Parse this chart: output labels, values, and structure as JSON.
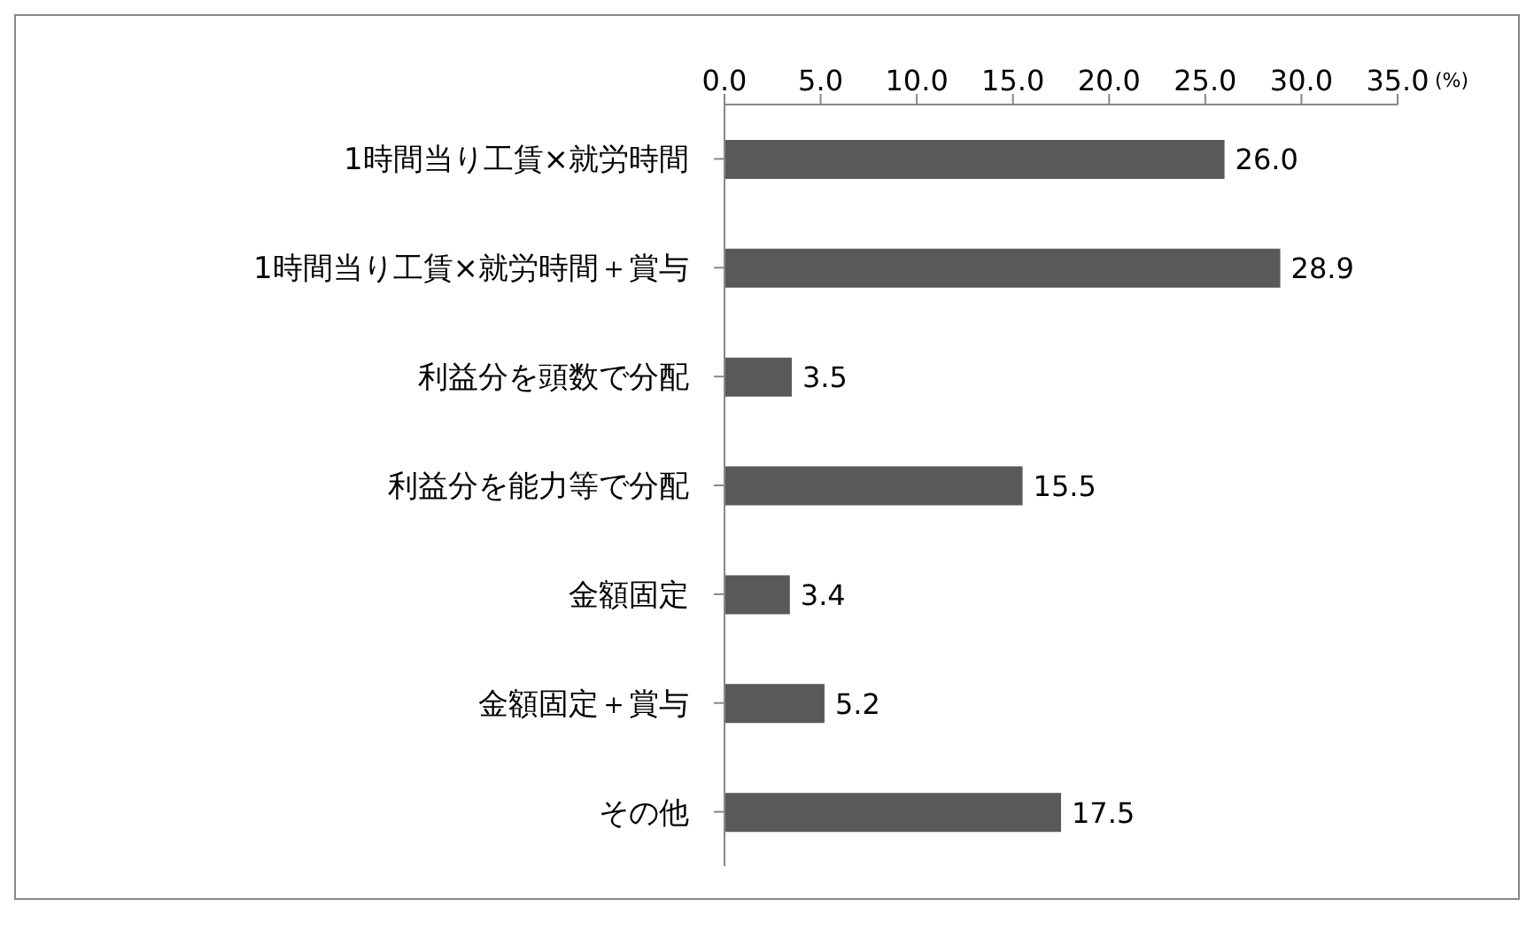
{
  "chart_data": {
    "type": "bar",
    "orientation": "horizontal",
    "categories": [
      "1時間当り工賃×就労時間",
      "1時間当り工賃×就労時間＋賞与",
      "利益分を頭数で分配",
      "利益分を能力等で分配",
      "金額固定",
      "金額固定＋賞与",
      "その他"
    ],
    "values": [
      26.0,
      28.9,
      3.5,
      15.5,
      3.4,
      5.2,
      17.5
    ],
    "value_labels": [
      "26.0",
      "28.9",
      "3.5",
      "15.5",
      "3.4",
      "5.2",
      "17.5"
    ],
    "color": "#595959",
    "xlabel": "(%)",
    "xlim": [
      0,
      35
    ],
    "xticks": [
      {
        "value": 0,
        "label": "0.0"
      },
      {
        "value": 5,
        "label": "5.0"
      },
      {
        "value": 10,
        "label": "10.0"
      },
      {
        "value": 15,
        "label": "15.0"
      },
      {
        "value": 20,
        "label": "20.0"
      },
      {
        "value": 25,
        "label": "25.0"
      },
      {
        "value": 30,
        "label": "30.0"
      },
      {
        "value": 35,
        "label": "35.0"
      }
    ],
    "grid": false,
    "legend": false
  }
}
